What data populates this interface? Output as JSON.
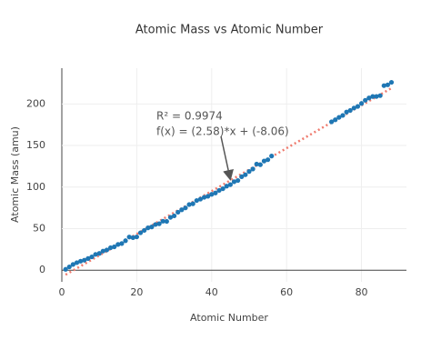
{
  "chart_data": {
    "type": "scatter",
    "title": "Atomic Mass vs Atomic Number",
    "x_label": "Atomic Number",
    "y_label": "Atomic Mass (amu)",
    "x": [
      1,
      2,
      3,
      4,
      5,
      6,
      7,
      8,
      9,
      10,
      11,
      12,
      13,
      14,
      15,
      16,
      17,
      18,
      19,
      20,
      21,
      22,
      23,
      24,
      25,
      26,
      27,
      28,
      29,
      30,
      31,
      32,
      33,
      34,
      35,
      36,
      37,
      38,
      39,
      40,
      41,
      42,
      43,
      44,
      45,
      46,
      47,
      48,
      49,
      50,
      51,
      52,
      53,
      54,
      55,
      56,
      72,
      73,
      74,
      75,
      76,
      77,
      78,
      79,
      80,
      81,
      82,
      83,
      84,
      85,
      86,
      87,
      88
    ],
    "values": [
      1.008,
      4.003,
      6.94,
      9.012,
      10.81,
      12.01,
      14.01,
      16.0,
      19.0,
      20.18,
      22.99,
      24.31,
      26.98,
      28.09,
      30.97,
      32.06,
      35.45,
      39.95,
      39.1,
      40.08,
      44.96,
      47.87,
      50.94,
      52.0,
      54.94,
      55.85,
      58.93,
      58.69,
      63.55,
      65.38,
      69.72,
      72.63,
      74.92,
      78.97,
      79.9,
      83.8,
      85.47,
      87.62,
      88.91,
      91.22,
      92.91,
      95.95,
      98,
      101.07,
      102.91,
      106.42,
      107.87,
      112.41,
      114.82,
      118.71,
      121.76,
      127.6,
      126.9,
      131.29,
      132.91,
      137.33,
      178.49,
      180.95,
      183.84,
      186.21,
      190.23,
      192.22,
      195.08,
      196.97,
      200.59,
      204.38,
      207.2,
      208.98,
      209,
      210,
      222,
      223,
      226
    ],
    "color": "#1f77b4",
    "trendline": {
      "slope": 2.58,
      "intercept": -8.06,
      "color": "#ef7b6e",
      "r2_text": "R² = 0.9974",
      "formula_text": "f(x) = (2.58)*x + (-8.06)"
    },
    "xlim": [
      0,
      92
    ],
    "ylim": [
      -14,
      243
    ],
    "xticks": [
      0,
      20,
      40,
      60,
      80
    ],
    "yticks": [
      0,
      50,
      100,
      150,
      200
    ],
    "grid": true
  }
}
